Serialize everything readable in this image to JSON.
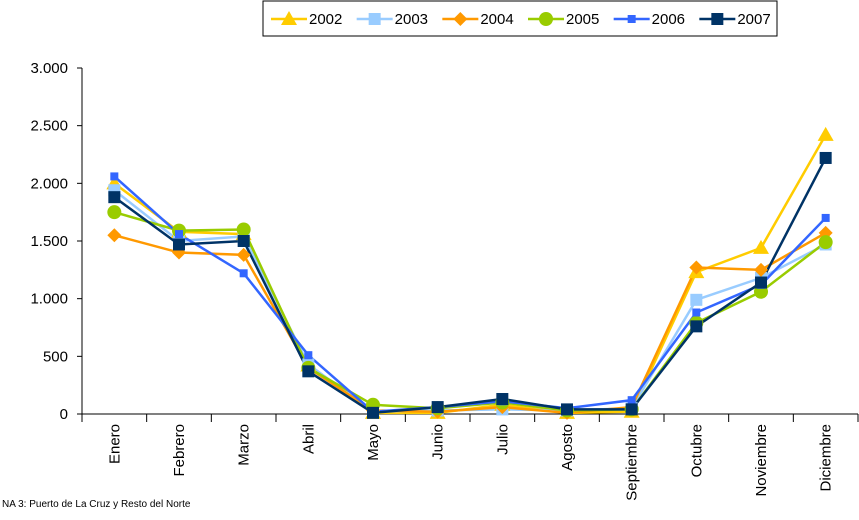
{
  "chart_data": {
    "type": "line",
    "categories": [
      "Enero",
      "Febrero",
      "Marzo",
      "Abril",
      "Mayo",
      "Junio",
      "Julio",
      "Agosto",
      "Septiembre",
      "Octubre",
      "Noviembre",
      "Diciembre"
    ],
    "series": [
      {
        "name": "2002",
        "color": "#FFCC00",
        "marker": "triangle",
        "values": [
          2000,
          1580,
          1560,
          420,
          10,
          10,
          80,
          10,
          20,
          1230,
          1440,
          2420
        ]
      },
      {
        "name": "2003",
        "color": "#99CCFF",
        "marker": "square",
        "values": [
          1940,
          1500,
          1540,
          430,
          20,
          30,
          40,
          30,
          50,
          990,
          1180,
          1470
        ]
      },
      {
        "name": "2004",
        "color": "#FF9900",
        "marker": "diamond",
        "values": [
          1550,
          1400,
          1380,
          400,
          30,
          20,
          60,
          10,
          60,
          1270,
          1250,
          1570
        ]
      },
      {
        "name": "2005",
        "color": "#99CC00",
        "marker": "circle",
        "values": [
          1750,
          1590,
          1600,
          400,
          80,
          50,
          100,
          30,
          40,
          790,
          1060,
          1490
        ]
      },
      {
        "name": "2006",
        "color": "#3366FF",
        "marker": "small-square",
        "values": [
          2060,
          1560,
          1220,
          510,
          20,
          60,
          110,
          50,
          120,
          880,
          1120,
          1700
        ]
      },
      {
        "name": "2007",
        "color": "#003366",
        "marker": "square",
        "values": [
          1880,
          1470,
          1500,
          370,
          10,
          60,
          130,
          40,
          40,
          760,
          1140,
          2220
        ]
      }
    ],
    "ylim": [
      0,
      3000
    ],
    "yticks": [
      0,
      500,
      {
        "value": 1000,
        "label": "1.000"
      },
      {
        "value": 1500,
        "label": "1.500"
      },
      {
        "value": 2000,
        "label": "2.000"
      },
      {
        "value": 2500,
        "label": "2.500"
      },
      {
        "value": 3000,
        "label": "3.000"
      }
    ],
    "grid": false,
    "legend": "top",
    "footnote": "NA 3: Puerto de La Cruz y Resto del Norte"
  }
}
